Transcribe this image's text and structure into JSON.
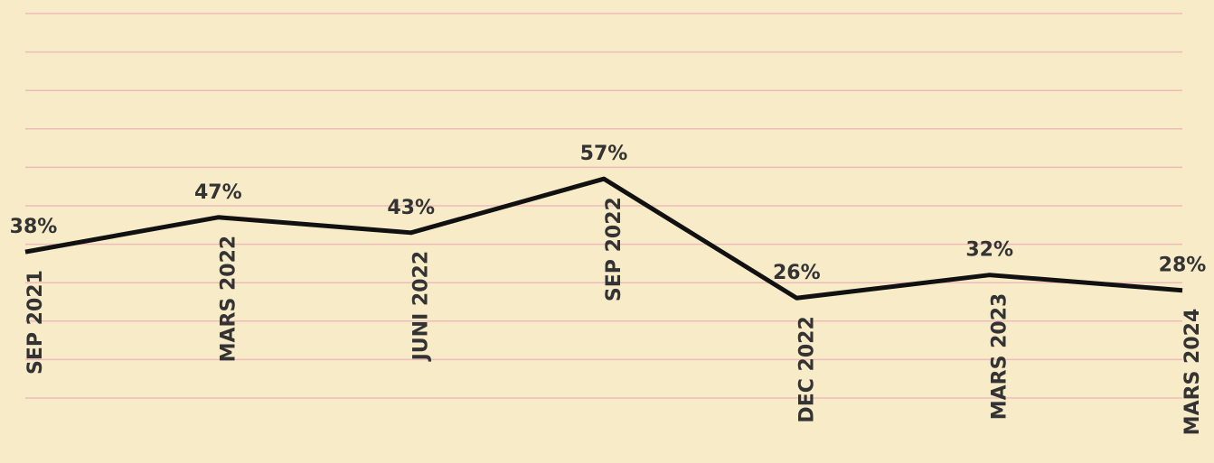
{
  "chart_data": {
    "type": "line",
    "categories": [
      "SEP 2021",
      "MARS 2022",
      "JUNI 2022",
      "SEP 2022",
      "DEC 2022",
      "MARS 2023",
      "MARS 2024"
    ],
    "values": [
      38,
      47,
      43,
      57,
      26,
      32,
      28
    ],
    "value_labels": [
      "38%",
      "47%",
      "43%",
      "57%",
      "26%",
      "32%",
      "28%"
    ],
    "color": "#111111",
    "ylim": [
      0,
      100
    ],
    "yticks": [
      0,
      10,
      20,
      30,
      40,
      50,
      60,
      70,
      80,
      90,
      100
    ],
    "grid": true
  }
}
